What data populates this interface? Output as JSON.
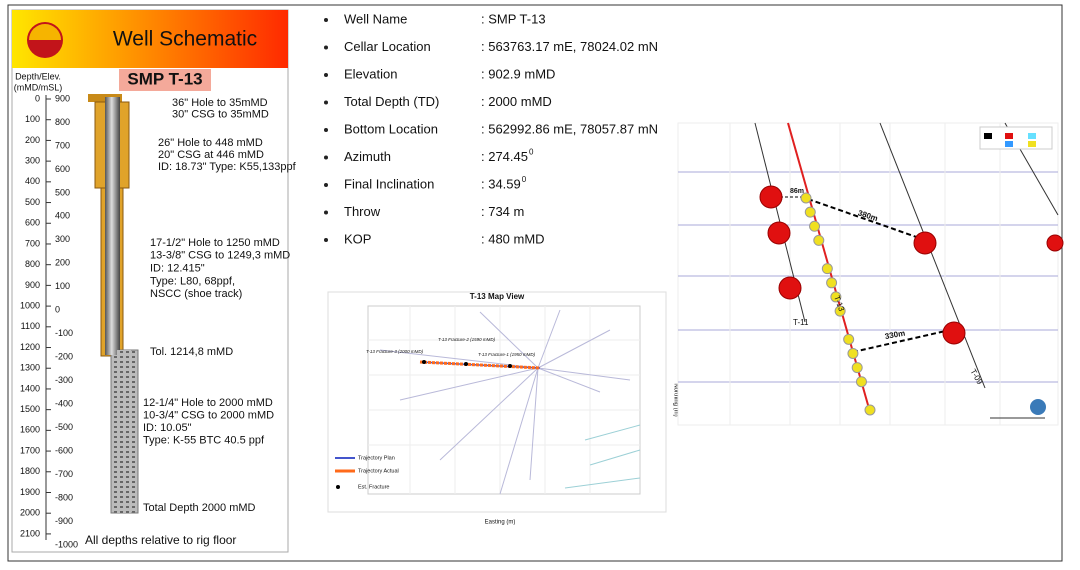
{
  "header": {
    "title": "Well Schematic",
    "axis_label_1": "Depth/Elev.",
    "axis_label_2": "(mMD/mSL)",
    "well": "SMP T-13"
  },
  "depth_ticks": [
    0,
    100,
    200,
    300,
    400,
    500,
    600,
    700,
    800,
    900,
    1000,
    1100,
    1200,
    1300,
    1400,
    1500,
    1600,
    1700,
    1800,
    1900,
    2000,
    2100
  ],
  "elevation_ticks": [
    900,
    800,
    700,
    600,
    500,
    400,
    300,
    200,
    100,
    0,
    -100,
    -200,
    -300,
    -400,
    -500,
    -600,
    -700,
    -800,
    -900,
    -1000
  ],
  "annotations": [
    [
      "36\" Hole to 35mMD",
      "30\" CSG to 35mMD"
    ],
    [
      "26\" Hole to 448 mMD",
      "20\" CSG at 446 mMD",
      "ID: 18.73\" Type: K55,133ppf"
    ],
    [
      "17-1/2\" Hole to 1250 mMD",
      "13-3/8\" CSG to 1249,3 mMD",
      "ID: 12.415\"",
      "Type: L80, 68ppf,",
      "NSCC (shoe track)"
    ],
    [
      "Tol. 1214,8 mMD"
    ],
    [
      "12-1/4\" Hole to 2000 mMD",
      "10-3/4\" CSG to 2000 mMD",
      "ID: 10.05\"",
      "Type: K-55 BTC 40.5 ppf"
    ],
    [
      "Total Depth 2000 mMD"
    ]
  ],
  "footnote": "All depths relative to rig floor",
  "well_info": [
    {
      "label": "Well Name",
      "value": ": SMP T-13"
    },
    {
      "label": "Cellar Location",
      "value": ": 563763.17 mE, 78024.02 mN"
    },
    {
      "label": "Elevation",
      "value": ": 902.9 mMD"
    },
    {
      "label": "Total Depth (TD)",
      "value": ": 2000 mMD"
    },
    {
      "label": "Bottom Location",
      "value": ": 562992.86 mE, 78057.87 mN"
    },
    {
      "label": "Azimuth",
      "value": ": 274.45",
      "sup": "0"
    },
    {
      "label": "Final Inclination",
      "value": ": 34.59",
      "sup": "0"
    },
    {
      "label": "Throw",
      "value": ": 734 m"
    },
    {
      "label": "KOP",
      "value": ": 480 mMD"
    }
  ],
  "map_view": {
    "title": "T-13 Map View",
    "x_label": "Easting (m)",
    "y_label": "Northing (m)",
    "fractures": [
      "T-13 Fracture-3 (2000 mMD)",
      "T-13 Fracture-2 (1590 mMD)",
      "T-13 Fracture-1 (1950 mMD)"
    ],
    "legend": [
      "Trajectory Plan",
      "Trajectory Actual",
      "Est. Fracture"
    ]
  },
  "view_3d": {
    "distances": [
      "86m",
      "380m",
      "330m"
    ],
    "wells": [
      "T-11",
      "T-13",
      "T-09"
    ]
  }
}
